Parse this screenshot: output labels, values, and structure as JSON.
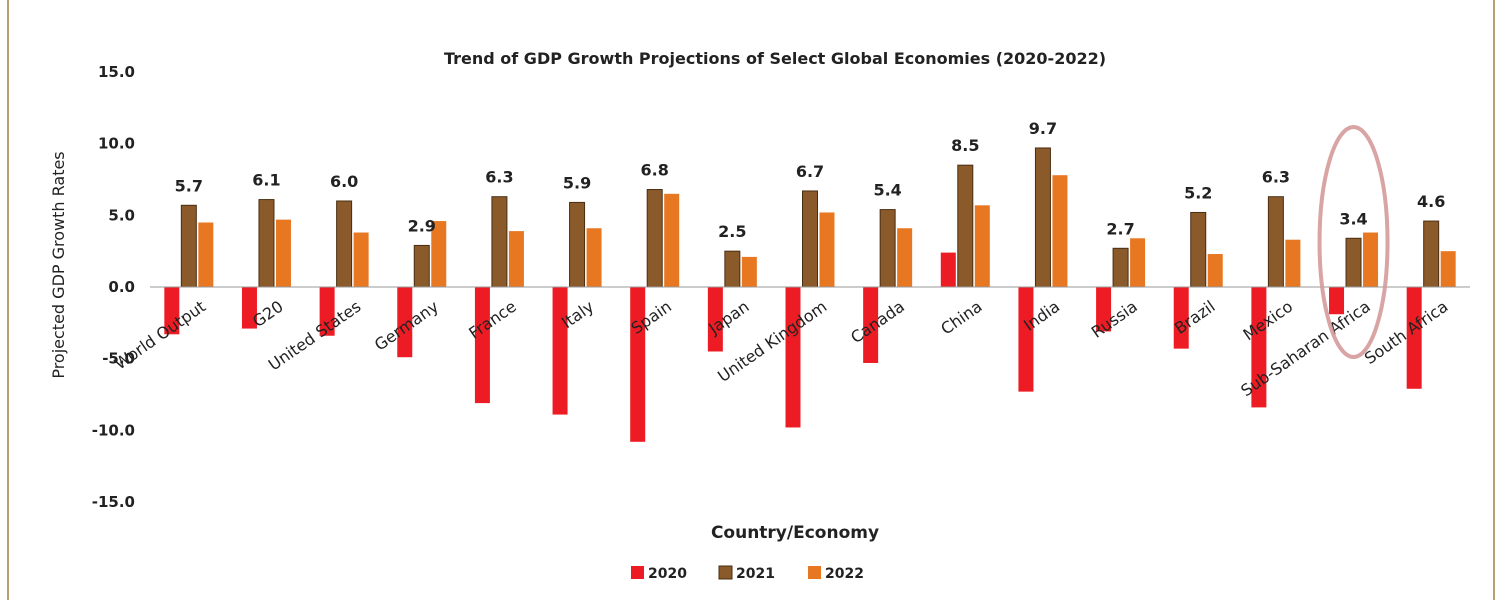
{
  "chart_data": {
    "type": "bar",
    "title": "Trend of GDP Growth Projections of Select Global Economies (2020-2022)",
    "xlabel": "Country/Economy",
    "ylabel": "Projected GDP Growth Rates",
    "ylim": [
      -15,
      15
    ],
    "yticks": [
      "15.0",
      "10.0",
      "5.0",
      "0.0",
      "-5.0",
      "-10.0",
      "-15.0"
    ],
    "ytick_values": [
      15,
      10,
      5,
      0,
      -5,
      -10,
      -15
    ],
    "grid": false,
    "legend_position": "bottom",
    "categories": [
      "World Output",
      "G20",
      "United States",
      "Germany",
      "France",
      "Italy",
      "Spain",
      "Japan",
      "United Kingdom",
      "Canada",
      "China",
      "India",
      "Russia",
      "Brazil",
      "Mexico",
      "Sub-Saharan Africa",
      "South Africa"
    ],
    "series": [
      {
        "name": "2020",
        "color": "#ed1c24",
        "values": [
          -3.3,
          -2.9,
          -3.4,
          -4.9,
          -8.1,
          -8.9,
          -10.8,
          -4.5,
          -9.8,
          -5.3,
          2.4,
          -7.3,
          -3.1,
          -4.3,
          -8.4,
          -1.9,
          -7.1
        ]
      },
      {
        "name": "2021",
        "color": "#8b5a2b",
        "values": [
          5.7,
          6.1,
          6.0,
          2.9,
          6.3,
          5.9,
          6.8,
          2.5,
          6.7,
          5.4,
          8.5,
          9.7,
          2.7,
          5.2,
          6.3,
          3.4,
          4.6
        ]
      },
      {
        "name": "2022",
        "color": "#e87722",
        "values": [
          4.5,
          4.7,
          3.8,
          4.6,
          3.9,
          4.1,
          6.5,
          2.1,
          5.2,
          4.1,
          5.7,
          7.8,
          3.4,
          2.3,
          3.3,
          3.8,
          2.5
        ]
      }
    ],
    "data_labels": [
      "5.7",
      "6.1",
      "6.0",
      "2.9",
      "6.3",
      "5.9",
      "6.8",
      "2.5",
      "6.7",
      "5.4",
      "8.5",
      "9.7",
      "2.7",
      "5.2",
      "6.3",
      "3.4",
      "4.6"
    ],
    "highlight_category": "Sub-Saharan Africa",
    "highlight_color": "#d49a9a",
    "frame_color": "#b5a06e"
  }
}
